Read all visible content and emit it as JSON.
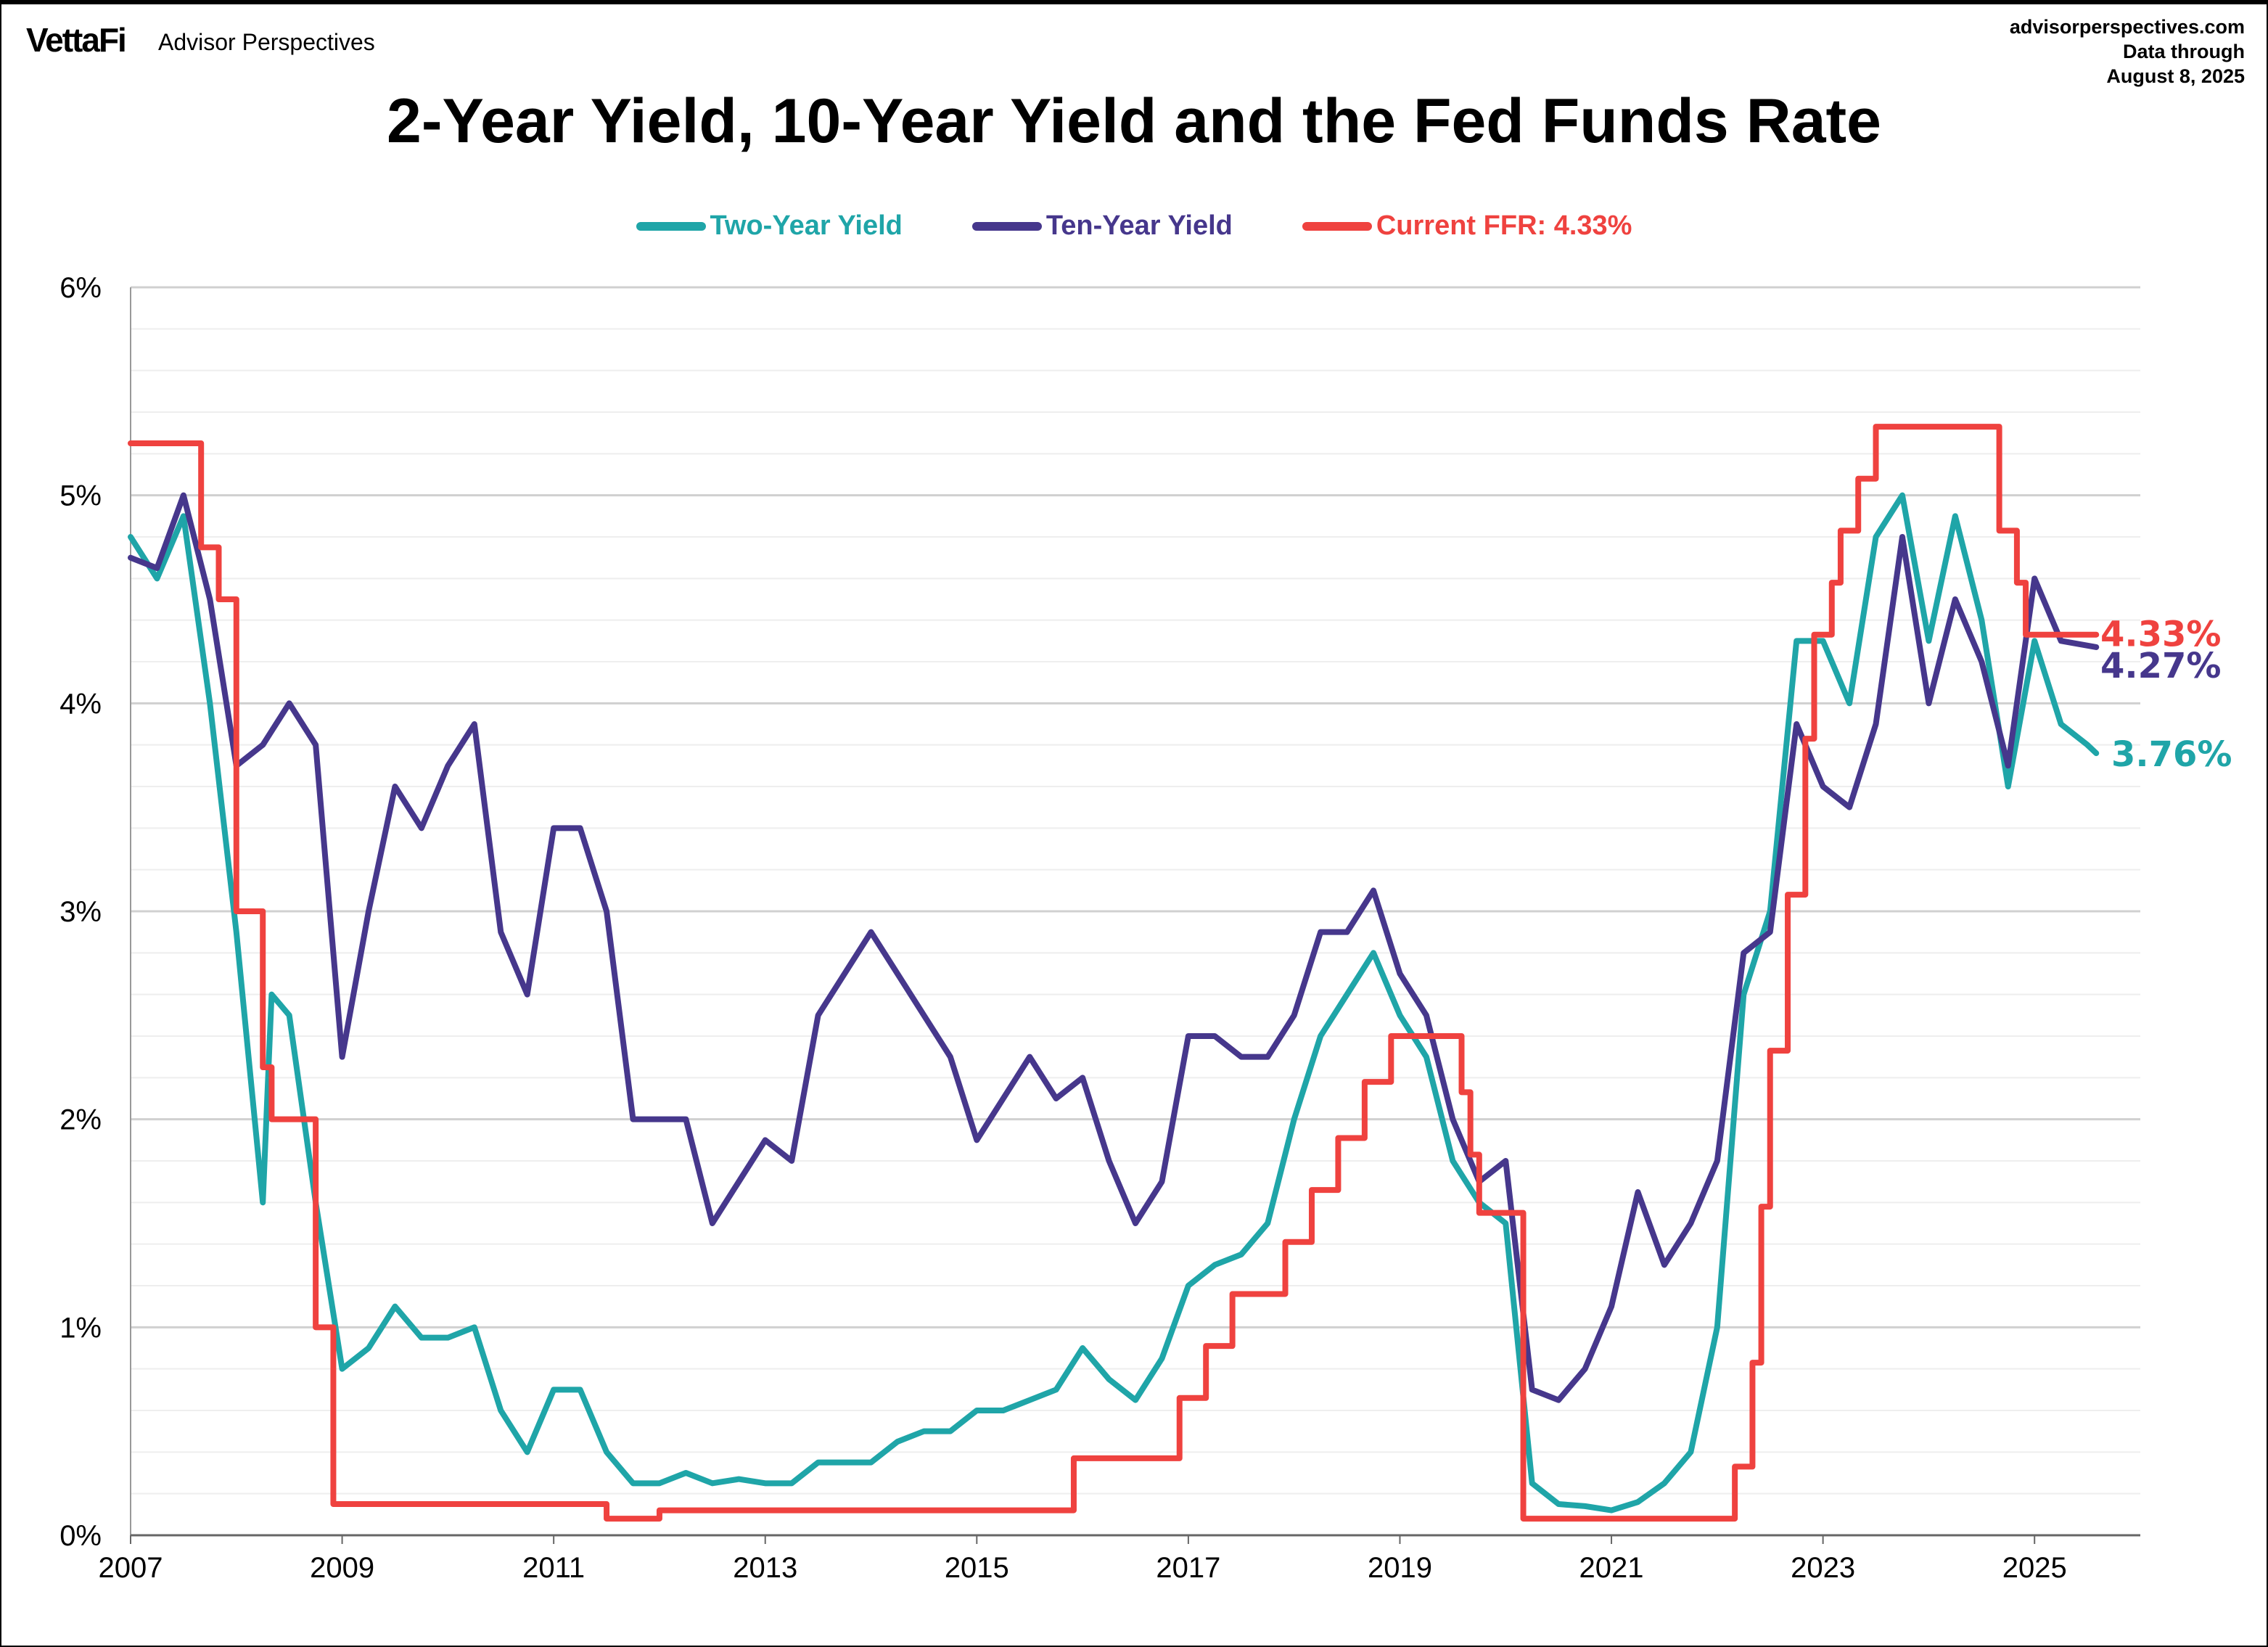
{
  "header": {
    "logo": "VettaFi",
    "brand": "Advisor Perspectives",
    "site": "advisorperspectives.com",
    "data_through_label": "Data through",
    "data_through_date": "August 8, 2025"
  },
  "chart_data": {
    "type": "line",
    "title": "2-Year Yield, 10-Year Yield and the Fed Funds Rate",
    "xlabel": "",
    "ylabel": "",
    "xlim": [
      "2007-01",
      "2026-01"
    ],
    "ylim": [
      0,
      6
    ],
    "y_ticks": [
      "0%",
      "1%",
      "2%",
      "3%",
      "4%",
      "5%",
      "6%"
    ],
    "x_ticks": [
      "2007",
      "2009",
      "2011",
      "2013",
      "2015",
      "2017",
      "2019",
      "2021",
      "2023",
      "2025"
    ],
    "grid": {
      "major_y": true,
      "minor_y_step": 0.2
    },
    "legend_placement": "top",
    "series": [
      {
        "name": "Two-Year Yield",
        "color": "#1fa5a8",
        "end_label": "3.76%",
        "points": [
          [
            "2007-01",
            4.8
          ],
          [
            "2007-04",
            4.6
          ],
          [
            "2007-07",
            4.9
          ],
          [
            "2007-10",
            4.0
          ],
          [
            "2008-01",
            2.9
          ],
          [
            "2008-04",
            1.6
          ],
          [
            "2008-05",
            2.6
          ],
          [
            "2008-07",
            2.5
          ],
          [
            "2008-10",
            1.6
          ],
          [
            "2009-01",
            0.8
          ],
          [
            "2009-04",
            0.9
          ],
          [
            "2009-07",
            1.1
          ],
          [
            "2009-10",
            0.95
          ],
          [
            "2010-01",
            0.95
          ],
          [
            "2010-04",
            1.0
          ],
          [
            "2010-07",
            0.6
          ],
          [
            "2010-10",
            0.4
          ],
          [
            "2011-01",
            0.7
          ],
          [
            "2011-04",
            0.7
          ],
          [
            "2011-07",
            0.4
          ],
          [
            "2011-10",
            0.25
          ],
          [
            "2012-01",
            0.25
          ],
          [
            "2012-04",
            0.3
          ],
          [
            "2012-07",
            0.25
          ],
          [
            "2012-10",
            0.27
          ],
          [
            "2013-01",
            0.25
          ],
          [
            "2013-04",
            0.25
          ],
          [
            "2013-07",
            0.35
          ],
          [
            "2013-10",
            0.35
          ],
          [
            "2014-01",
            0.35
          ],
          [
            "2014-04",
            0.45
          ],
          [
            "2014-07",
            0.5
          ],
          [
            "2014-10",
            0.5
          ],
          [
            "2015-01",
            0.6
          ],
          [
            "2015-04",
            0.6
          ],
          [
            "2015-07",
            0.65
          ],
          [
            "2015-10",
            0.7
          ],
          [
            "2016-01",
            0.9
          ],
          [
            "2016-04",
            0.75
          ],
          [
            "2016-07",
            0.65
          ],
          [
            "2016-10",
            0.85
          ],
          [
            "2017-01",
            1.2
          ],
          [
            "2017-04",
            1.3
          ],
          [
            "2017-07",
            1.35
          ],
          [
            "2017-10",
            1.5
          ],
          [
            "2018-01",
            2.0
          ],
          [
            "2018-04",
            2.4
          ],
          [
            "2018-07",
            2.6
          ],
          [
            "2018-10",
            2.8
          ],
          [
            "2019-01",
            2.5
          ],
          [
            "2019-04",
            2.3
          ],
          [
            "2019-07",
            1.8
          ],
          [
            "2019-10",
            1.6
          ],
          [
            "2020-01",
            1.5
          ],
          [
            "2020-04",
            0.25
          ],
          [
            "2020-07",
            0.15
          ],
          [
            "2020-10",
            0.14
          ],
          [
            "2021-01",
            0.12
          ],
          [
            "2021-04",
            0.16
          ],
          [
            "2021-07",
            0.25
          ],
          [
            "2021-10",
            0.4
          ],
          [
            "2022-01",
            1.0
          ],
          [
            "2022-04",
            2.6
          ],
          [
            "2022-07",
            3.0
          ],
          [
            "2022-10",
            4.3
          ],
          [
            "2023-01",
            4.3
          ],
          [
            "2023-04",
            4.0
          ],
          [
            "2023-07",
            4.8
          ],
          [
            "2023-10",
            5.0
          ],
          [
            "2024-01",
            4.3
          ],
          [
            "2024-04",
            4.9
          ],
          [
            "2024-07",
            4.4
          ],
          [
            "2024-10",
            3.6
          ],
          [
            "2025-01",
            4.3
          ],
          [
            "2025-04",
            3.9
          ],
          [
            "2025-07",
            3.8
          ],
          [
            "2025-08",
            3.76
          ]
        ]
      },
      {
        "name": "Ten-Year Yield",
        "color": "#46378c",
        "end_label": "4.27%",
        "points": [
          [
            "2007-01",
            4.7
          ],
          [
            "2007-04",
            4.65
          ],
          [
            "2007-07",
            5.0
          ],
          [
            "2007-10",
            4.5
          ],
          [
            "2008-01",
            3.7
          ],
          [
            "2008-04",
            3.8
          ],
          [
            "2008-07",
            4.0
          ],
          [
            "2008-10",
            3.8
          ],
          [
            "2009-01",
            2.3
          ],
          [
            "2009-04",
            3.0
          ],
          [
            "2009-07",
            3.6
          ],
          [
            "2009-10",
            3.4
          ],
          [
            "2010-01",
            3.7
          ],
          [
            "2010-04",
            3.9
          ],
          [
            "2010-07",
            2.9
          ],
          [
            "2010-10",
            2.6
          ],
          [
            "2011-01",
            3.4
          ],
          [
            "2011-04",
            3.4
          ],
          [
            "2011-07",
            3.0
          ],
          [
            "2011-10",
            2.0
          ],
          [
            "2012-01",
            2.0
          ],
          [
            "2012-04",
            2.0
          ],
          [
            "2012-07",
            1.5
          ],
          [
            "2012-10",
            1.7
          ],
          [
            "2013-01",
            1.9
          ],
          [
            "2013-04",
            1.8
          ],
          [
            "2013-07",
            2.5
          ],
          [
            "2013-10",
            2.7
          ],
          [
            "2014-01",
            2.9
          ],
          [
            "2014-04",
            2.7
          ],
          [
            "2014-07",
            2.5
          ],
          [
            "2014-10",
            2.3
          ],
          [
            "2015-01",
            1.9
          ],
          [
            "2015-04",
            2.1
          ],
          [
            "2015-07",
            2.3
          ],
          [
            "2015-10",
            2.1
          ],
          [
            "2016-01",
            2.2
          ],
          [
            "2016-04",
            1.8
          ],
          [
            "2016-07",
            1.5
          ],
          [
            "2016-10",
            1.7
          ],
          [
            "2017-01",
            2.4
          ],
          [
            "2017-04",
            2.4
          ],
          [
            "2017-07",
            2.3
          ],
          [
            "2017-10",
            2.3
          ],
          [
            "2018-01",
            2.5
          ],
          [
            "2018-04",
            2.9
          ],
          [
            "2018-07",
            2.9
          ],
          [
            "2018-10",
            3.1
          ],
          [
            "2019-01",
            2.7
          ],
          [
            "2019-04",
            2.5
          ],
          [
            "2019-07",
            2.0
          ],
          [
            "2019-10",
            1.7
          ],
          [
            "2020-01",
            1.8
          ],
          [
            "2020-04",
            0.7
          ],
          [
            "2020-07",
            0.65
          ],
          [
            "2020-10",
            0.8
          ],
          [
            "2021-01",
            1.1
          ],
          [
            "2021-04",
            1.65
          ],
          [
            "2021-07",
            1.3
          ],
          [
            "2021-10",
            1.5
          ],
          [
            "2022-01",
            1.8
          ],
          [
            "2022-04",
            2.8
          ],
          [
            "2022-07",
            2.9
          ],
          [
            "2022-10",
            3.9
          ],
          [
            "2023-01",
            3.6
          ],
          [
            "2023-04",
            3.5
          ],
          [
            "2023-07",
            3.9
          ],
          [
            "2023-10",
            4.8
          ],
          [
            "2024-01",
            4.0
          ],
          [
            "2024-04",
            4.5
          ],
          [
            "2024-07",
            4.2
          ],
          [
            "2024-10",
            3.7
          ],
          [
            "2025-01",
            4.6
          ],
          [
            "2025-04",
            4.3
          ],
          [
            "2025-08",
            4.27
          ]
        ]
      },
      {
        "name": "Current FFR: 4.33%",
        "color": "#ef423f",
        "end_label": "4.33%",
        "step": true,
        "points": [
          [
            "2007-01",
            5.25
          ],
          [
            "2007-09",
            4.75
          ],
          [
            "2007-11",
            4.5
          ],
          [
            "2008-01",
            3.0
          ],
          [
            "2008-04",
            2.25
          ],
          [
            "2008-05",
            2.0
          ],
          [
            "2008-10",
            1.0
          ],
          [
            "2008-12",
            0.15
          ],
          [
            "2011-07",
            0.08
          ],
          [
            "2012-01",
            0.12
          ],
          [
            "2015-12",
            0.37
          ],
          [
            "2016-12",
            0.66
          ],
          [
            "2017-03",
            0.91
          ],
          [
            "2017-06",
            1.16
          ],
          [
            "2017-12",
            1.41
          ],
          [
            "2018-03",
            1.66
          ],
          [
            "2018-06",
            1.91
          ],
          [
            "2018-09",
            2.18
          ],
          [
            "2018-12",
            2.4
          ],
          [
            "2019-08",
            2.13
          ],
          [
            "2019-09",
            1.83
          ],
          [
            "2019-10",
            1.55
          ],
          [
            "2020-03",
            0.08
          ],
          [
            "2022-03",
            0.33
          ],
          [
            "2022-05",
            0.83
          ],
          [
            "2022-06",
            1.58
          ],
          [
            "2022-07",
            2.33
          ],
          [
            "2022-09",
            3.08
          ],
          [
            "2022-11",
            3.83
          ],
          [
            "2022-12",
            4.33
          ],
          [
            "2023-02",
            4.58
          ],
          [
            "2023-03",
            4.83
          ],
          [
            "2023-05",
            5.08
          ],
          [
            "2023-07",
            5.33
          ],
          [
            "2024-09",
            4.83
          ],
          [
            "2024-11",
            4.58
          ],
          [
            "2024-12",
            4.33
          ],
          [
            "2025-08",
            4.33
          ]
        ]
      }
    ]
  }
}
